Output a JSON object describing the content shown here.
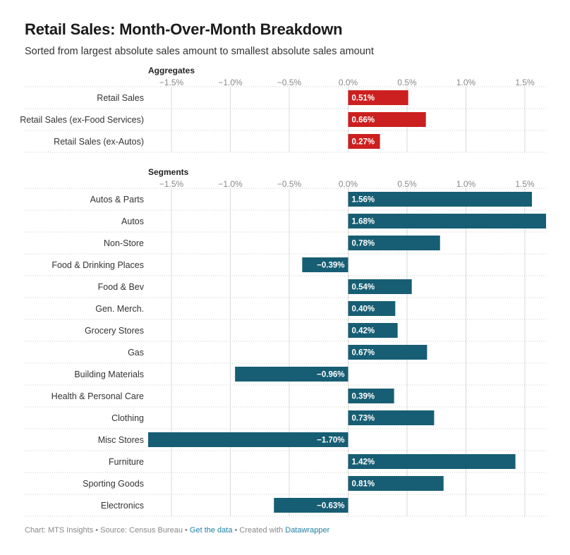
{
  "title": "Retail Sales: Month-Over-Month Breakdown",
  "subtitle": "Sorted from largest absolute sales amount to smallest absolute sales amount",
  "footer": {
    "prefix": "Chart: MTS Insights • Source: Census Bureau • ",
    "get_data": "Get the data",
    "middle": " • Created with ",
    "datawrapper": "Datawrapper"
  },
  "colors": {
    "aggregates_bar": "#cc1f1f",
    "segments_bar": "#175e74",
    "gridline": "#d9d9d9",
    "link": "#1d81a2"
  },
  "chart_data": [
    {
      "type": "bar",
      "orientation": "horizontal",
      "title": "Aggregates",
      "xlim": [
        -1.7,
        1.7
      ],
      "ticks": [
        -1.5,
        -1.0,
        -0.5,
        0.0,
        0.5,
        1.0,
        1.5
      ],
      "tick_labels": [
        "−1.5%",
        "−1.0%",
        "−0.5%",
        "0.0%",
        "0.5%",
        "1.0%",
        "1.5%"
      ],
      "categories": [
        "Retail Sales",
        "Retail Sales (ex-Food Services)",
        "Retail Sales (ex-Autos)"
      ],
      "values": [
        0.51,
        0.66,
        0.27
      ],
      "value_labels": [
        "0.51%",
        "0.66%",
        "0.27%"
      ],
      "color": "#cc1f1f"
    },
    {
      "type": "bar",
      "orientation": "horizontal",
      "title": "Segments",
      "xlim": [
        -1.7,
        1.7
      ],
      "ticks": [
        -1.5,
        -1.0,
        -0.5,
        0.0,
        0.5,
        1.0,
        1.5
      ],
      "tick_labels": [
        "−1.5%",
        "−1.0%",
        "−0.5%",
        "0.0%",
        "0.5%",
        "1.0%",
        "1.5%"
      ],
      "categories": [
        "Autos & Parts",
        "Autos",
        "Non-Store",
        "Food & Drinking Places",
        "Food & Bev",
        "Gen. Merch.",
        "Grocery Stores",
        "Gas",
        "Building Materials",
        "Health & Personal Care",
        "Clothing",
        "Misc Stores",
        "Furniture",
        "Sporting Goods",
        "Electronics"
      ],
      "values": [
        1.56,
        1.68,
        0.78,
        -0.39,
        0.54,
        0.4,
        0.42,
        0.67,
        -0.96,
        0.39,
        0.73,
        -1.7,
        1.42,
        0.81,
        -0.63
      ],
      "value_labels": [
        "1.56%",
        "1.68%",
        "0.78%",
        "−0.39%",
        "0.54%",
        "0.40%",
        "0.42%",
        "0.67%",
        "−0.96%",
        "0.39%",
        "0.73%",
        "−1.70%",
        "1.42%",
        "0.81%",
        "−0.63%"
      ],
      "color": "#175e74"
    }
  ]
}
